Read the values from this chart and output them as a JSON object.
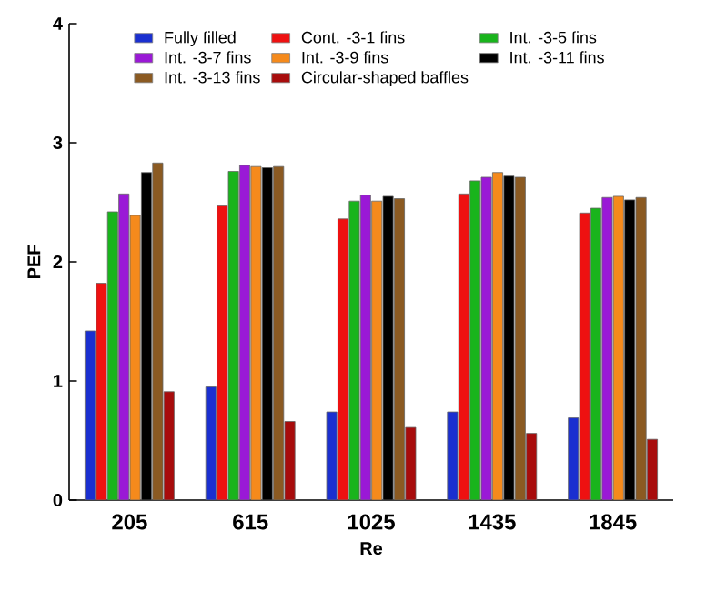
{
  "chart_data": {
    "type": "bar",
    "xlabel": "Re",
    "ylabel": "PEF",
    "categories": [
      "205",
      "615",
      "1025",
      "1435",
      "1845"
    ],
    "series": [
      {
        "name": "Fully filled",
        "color": "#1a2fd0",
        "values": [
          1.42,
          0.95,
          0.74,
          0.74,
          0.69
        ]
      },
      {
        "name": "Cont. -3-1 fins",
        "color": "#ee1111",
        "values": [
          1.82,
          2.47,
          2.36,
          2.57,
          2.41
        ]
      },
      {
        "name": "Int. -3-5 fins",
        "color": "#19b41c",
        "values": [
          2.42,
          2.76,
          2.51,
          2.68,
          2.45
        ]
      },
      {
        "name": "Int. -3-7 fins",
        "color": "#9a19d6",
        "values": [
          2.57,
          2.81,
          2.56,
          2.71,
          2.54
        ]
      },
      {
        "name": "Int. -3-9 fins",
        "color": "#f58a1c",
        "values": [
          2.39,
          2.8,
          2.51,
          2.75,
          2.55
        ]
      },
      {
        "name": "Int. -3-11 fins",
        "color": "#000000",
        "values": [
          2.75,
          2.79,
          2.55,
          2.72,
          2.52
        ]
      },
      {
        "name": "Int. -3-13 fins",
        "color": "#8b5a22",
        "values": [
          2.83,
          2.8,
          2.53,
          2.71,
          2.54
        ]
      },
      {
        "name": "Circular-shaped baffles",
        "color": "#a80c0c",
        "values": [
          0.91,
          0.66,
          0.61,
          0.56,
          0.51
        ]
      }
    ],
    "ylim": [
      0,
      4
    ],
    "yticks": [
      0,
      1,
      2,
      3,
      4
    ],
    "legend": "top"
  }
}
